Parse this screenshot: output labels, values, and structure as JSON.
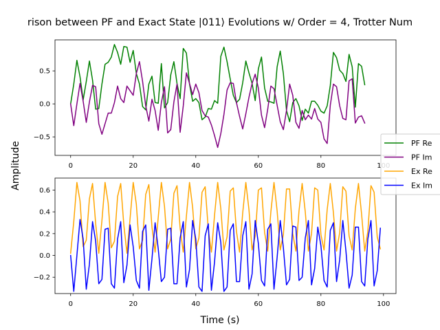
{
  "chart_data": {
    "type": "line",
    "title": "rison between PF and Exact State |011⟩ Evolutions w/ Order = 4, Trotter Num",
    "xlabel": "Time (s)",
    "ylabel": "Amplitude",
    "legend": {
      "placement": "right",
      "entries": [
        {
          "name": "PF Re",
          "color": "#008000"
        },
        {
          "name": "PF Im",
          "color": "#800080"
        },
        {
          "name": "Ex Re",
          "color": "#FFA500"
        },
        {
          "name": "Ex Im",
          "color": "#0000FF"
        }
      ]
    },
    "panels": [
      {
        "name": "top",
        "xlim": [
          -5,
          104
        ],
        "ylim": [
          -0.78,
          0.97
        ],
        "xticks": [
          0,
          20,
          40,
          60,
          80,
          100
        ],
        "yticks": [
          -0.5,
          0.0,
          0.5
        ],
        "ytick_labels": [
          "−0.5",
          "0.0",
          "0.5"
        ],
        "series": [
          {
            "name": "PF Re",
            "color": "#008000",
            "values": [
              0.0,
              0.3,
              0.66,
              0.41,
              0.06,
              0.34,
              0.65,
              0.36,
              -0.08,
              -0.07,
              0.3,
              0.6,
              0.63,
              0.71,
              0.9,
              0.78,
              0.6,
              0.87,
              0.86,
              0.63,
              0.81,
              0.46,
              0.3,
              -0.04,
              -0.09,
              0.3,
              0.42,
              0.02,
              0.01,
              0.61,
              -0.06,
              0.02,
              0.44,
              0.64,
              0.31,
              0.08,
              0.84,
              0.77,
              0.3,
              0.04,
              0.08,
              0.02,
              -0.24,
              -0.2,
              -0.07,
              -0.08,
              0.05,
              0.01,
              0.72,
              0.86,
              0.64,
              0.38,
              0.13,
              0.02,
              0.07,
              0.32,
              0.65,
              0.47,
              0.31,
              0.05,
              0.53,
              0.71,
              0.24,
              0.04,
              0.03,
              0.01,
              0.56,
              0.8,
              0.46,
              -0.1,
              -0.27,
              0.02,
              0.08,
              -0.03,
              -0.25,
              -0.08,
              -0.14,
              0.04,
              0.04,
              -0.02,
              -0.11,
              -0.14,
              -0.03,
              0.28,
              0.78,
              0.7,
              0.51,
              0.46,
              0.34,
              0.75,
              0.56,
              -0.05,
              0.61,
              0.57,
              0.29
            ]
          },
          {
            "name": "PF Im",
            "color": "#800080",
            "values": [
              0.0,
              -0.33,
              0.0,
              0.31,
              0.04,
              -0.28,
              0.03,
              0.28,
              0.26,
              -0.3,
              -0.46,
              -0.3,
              -0.14,
              -0.14,
              0.02,
              0.27,
              0.08,
              0.02,
              0.27,
              0.2,
              0.13,
              0.46,
              0.64,
              0.34,
              -0.03,
              -0.26,
              0.07,
              -0.1,
              -0.4,
              0.02,
              0.26,
              -0.44,
              -0.39,
              0.03,
              0.3,
              -0.43,
              -0.03,
              0.47,
              0.31,
              0.14,
              0.3,
              0.17,
              -0.1,
              -0.18,
              -0.2,
              -0.32,
              -0.48,
              -0.66,
              -0.45,
              -0.16,
              0.21,
              0.32,
              0.31,
              0.02,
              -0.19,
              -0.38,
              -0.15,
              0.1,
              0.31,
              0.45,
              0.24,
              -0.17,
              -0.36,
              -0.08,
              0.27,
              0.23,
              -0.02,
              -0.27,
              -0.39,
              -0.1,
              0.3,
              0.13,
              -0.28,
              -0.37,
              -0.1,
              -0.24,
              -0.17,
              -0.23,
              -0.07,
              -0.23,
              -0.28,
              -0.53,
              -0.6,
              -0.02,
              0.3,
              0.26,
              -0.03,
              -0.22,
              -0.24,
              0.35,
              0.38,
              -0.29,
              -0.2,
              -0.18,
              -0.29
            ]
          }
        ]
      },
      {
        "name": "bottom",
        "xlim": [
          -5,
          104
        ],
        "ylim": [
          -0.35,
          0.71
        ],
        "xticks": [
          0,
          20,
          40,
          60,
          80,
          100
        ],
        "yticks": [
          -0.2,
          0.0,
          0.2,
          0.4,
          0.6
        ],
        "ytick_labels": [
          "−0.2",
          "0.0",
          "0.2",
          "0.4",
          "0.6"
        ],
        "series": [
          {
            "name": "Ex Re",
            "color": "#FFA500",
            "values": [
              0.02,
              0.31,
              0.67,
              0.5,
              0.08,
              0.14,
              0.52,
              0.66,
              0.29,
              0.02,
              0.32,
              0.67,
              0.48,
              0.07,
              0.13,
              0.54,
              0.66,
              0.28,
              0.02,
              0.34,
              0.67,
              0.47,
              0.06,
              0.14,
              0.56,
              0.65,
              0.26,
              0.03,
              0.35,
              0.67,
              0.45,
              0.06,
              0.15,
              0.57,
              0.64,
              0.25,
              0.03,
              0.36,
              0.67,
              0.44,
              0.06,
              0.16,
              0.58,
              0.63,
              0.24,
              0.03,
              0.37,
              0.67,
              0.43,
              0.05,
              0.17,
              0.59,
              0.62,
              0.22,
              0.03,
              0.39,
              0.67,
              0.42,
              0.05,
              0.18,
              0.6,
              0.62,
              0.21,
              0.04,
              0.4,
              0.67,
              0.41,
              0.05,
              0.19,
              0.61,
              0.61,
              0.2,
              0.04,
              0.41,
              0.66,
              0.4,
              0.04,
              0.2,
              0.62,
              0.6,
              0.19,
              0.05,
              0.42,
              0.66,
              0.39,
              0.04,
              0.21,
              0.63,
              0.59,
              0.18,
              0.05,
              0.43,
              0.66,
              0.38,
              0.04,
              0.22,
              0.64,
              0.58,
              0.17,
              0.06
            ]
          },
          {
            "name": "Ex Im",
            "color": "#0000FF",
            "values": [
              0.0,
              -0.33,
              0.0,
              0.33,
              0.15,
              -0.31,
              -0.08,
              0.31,
              0.13,
              -0.26,
              -0.22,
              0.24,
              0.25,
              -0.26,
              -0.3,
              0.15,
              0.31,
              -0.25,
              -0.09,
              0.28,
              0.08,
              -0.23,
              -0.3,
              0.22,
              0.28,
              -0.32,
              -0.03,
              0.3,
              0.06,
              -0.24,
              -0.2,
              0.24,
              0.25,
              -0.26,
              -0.26,
              0.16,
              0.31,
              -0.29,
              -0.13,
              0.32,
              0.15,
              -0.29,
              -0.33,
              0.18,
              0.29,
              -0.32,
              -0.06,
              0.3,
              0.12,
              -0.33,
              -0.29,
              0.23,
              0.29,
              -0.24,
              -0.24,
              0.18,
              0.31,
              -0.31,
              -0.17,
              0.32,
              0.11,
              -0.23,
              -0.28,
              0.24,
              0.29,
              -0.31,
              -0.02,
              0.32,
              0.07,
              -0.27,
              -0.22,
              0.27,
              0.26,
              -0.23,
              -0.2,
              0.16,
              0.32,
              -0.27,
              -0.12,
              0.26,
              0.09,
              -0.23,
              -0.29,
              0.23,
              0.3,
              -0.24,
              -0.04,
              0.32,
              0.04,
              -0.3,
              -0.18,
              0.26,
              0.26,
              -0.24,
              -0.28,
              0.15,
              0.32,
              -0.28,
              -0.14,
              0.25
            ]
          }
        ]
      }
    ]
  }
}
